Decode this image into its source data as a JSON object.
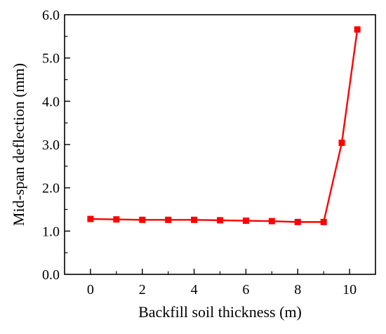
{
  "chart_data": {
    "type": "line",
    "title": "",
    "xlabel": "Backfill soil thickness (m)",
    "ylabel": "Mid-span deflection (mm)",
    "xlim": [
      -1,
      11
    ],
    "ylim": [
      0,
      6
    ],
    "x_ticks": [
      0,
      2,
      4,
      6,
      8,
      10
    ],
    "x_tick_labels": [
      "0",
      "2",
      "4",
      "6",
      "8",
      "10"
    ],
    "y_ticks": [
      0,
      1,
      2,
      3,
      4,
      5,
      6
    ],
    "y_tick_labels": [
      "0.0",
      "1.0",
      "2.0",
      "3.0",
      "4.0",
      "5.0",
      "6.0"
    ],
    "grid": false,
    "legend": "none",
    "series": [
      {
        "color": "#ff0000",
        "marker": "square",
        "x": [
          0,
          1,
          2,
          3,
          4,
          5,
          6,
          7,
          8,
          9,
          9.7,
          10.3
        ],
        "y": [
          1.28,
          1.27,
          1.26,
          1.26,
          1.26,
          1.25,
          1.24,
          1.23,
          1.21,
          1.21,
          3.04,
          5.66
        ]
      }
    ]
  }
}
